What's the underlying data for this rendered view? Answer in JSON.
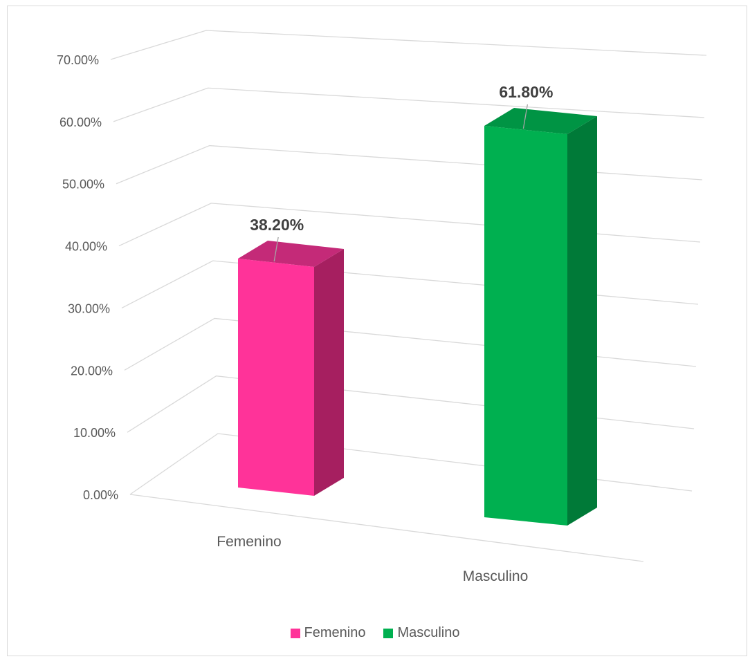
{
  "chart_data": {
    "type": "bar",
    "categories": [
      "Femenino",
      "Masculino"
    ],
    "values": [
      0.382,
      0.618
    ],
    "data_labels": [
      "38.20%",
      "61.80%"
    ],
    "ylim": [
      0,
      0.7
    ],
    "yticks": [
      "0.00%",
      "10.00%",
      "20.00%",
      "30.00%",
      "40.00%",
      "50.00%",
      "60.00%",
      "70.00%"
    ],
    "grid": true,
    "three_d": true,
    "legend": {
      "position": "bottom",
      "entries": [
        "Femenino",
        "Masculino"
      ]
    },
    "colors": {
      "Femenino": {
        "front": "#ff3399",
        "side": "#a61f60",
        "top": "#c42a78"
      },
      "Masculino": {
        "front": "#00b050",
        "side": "#007a38",
        "top": "#009444"
      }
    }
  }
}
